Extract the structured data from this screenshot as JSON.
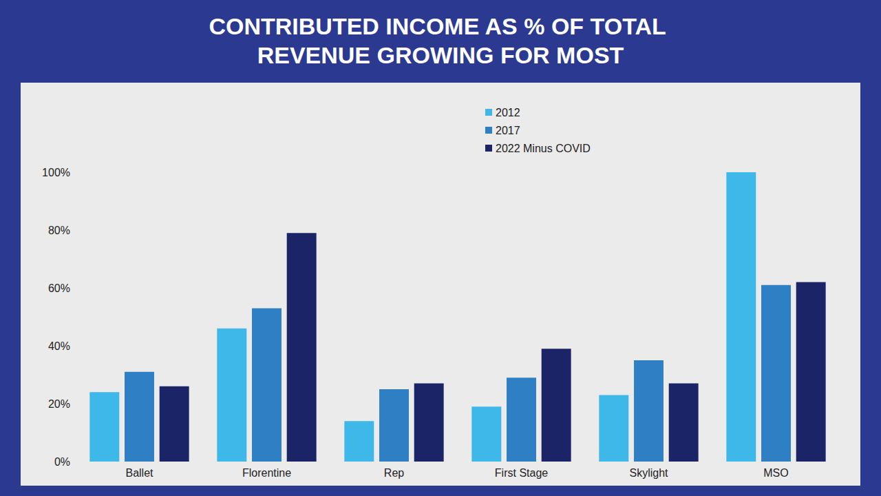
{
  "chart_data": {
    "type": "bar",
    "title": "CONTRIBUTED INCOME AS % OF TOTAL REVENUE GROWING FOR MOST",
    "categories": [
      "Ballet",
      "Florentine",
      "Rep",
      "First Stage",
      "Skylight",
      "MSO"
    ],
    "series": [
      {
        "name": "2012",
        "color": "#3db8e8",
        "values": [
          24,
          46,
          14,
          19,
          23,
          100
        ]
      },
      {
        "name": "2017",
        "color": "#2f7fc4",
        "values": [
          31,
          53,
          25,
          29,
          35,
          61
        ]
      },
      {
        "name": "2022 Minus COVID",
        "color": "#1b2466",
        "values": [
          26,
          79,
          27,
          39,
          27,
          62
        ]
      }
    ],
    "ylim": [
      0,
      100
    ],
    "yticks": [
      {
        "value": 0,
        "label": "0%"
      },
      {
        "value": 20,
        "label": "20%"
      },
      {
        "value": 40,
        "label": "40%"
      },
      {
        "value": 60,
        "label": "60%"
      },
      {
        "value": 80,
        "label": "80%"
      },
      {
        "value": 100,
        "label": "100%"
      }
    ],
    "grid": false,
    "legend": "upper-right"
  }
}
